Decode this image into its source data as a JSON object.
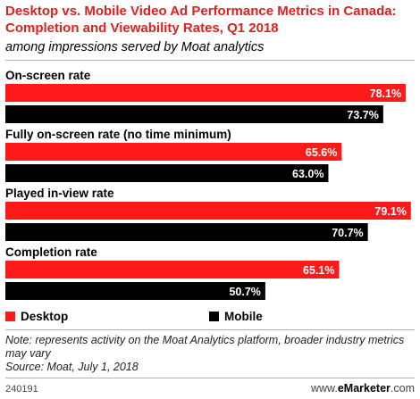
{
  "header": {
    "title": "Desktop vs. Mobile Video Ad Performance Metrics in Canada: Completion and Viewability Rates, Q1 2018",
    "subtitle": "among impressions served by Moat analytics"
  },
  "legend": {
    "desktop_label": "Desktop",
    "mobile_label": "Mobile"
  },
  "footer": {
    "note": "Note: represents activity on the Moat Analytics platform, broader industry metrics may vary",
    "source": "Source: Moat, July 1, 2018",
    "chart_id": "240191",
    "brand_prefix": "www.",
    "brand_name": "eMarketer",
    "brand_suffix": ".com"
  },
  "colors": {
    "desktop": "#ff1a1a",
    "mobile": "#000000",
    "title": "#e1201c",
    "label_on_red": "#ffffff",
    "label_on_black": "#ffffff"
  },
  "chart_data": {
    "type": "bar",
    "orientation": "horizontal",
    "categories": [
      "On-screen rate",
      "Fully on-screen rate (no time minimum)",
      "Played in-view rate",
      "Completion rate"
    ],
    "series": [
      {
        "name": "Desktop",
        "values": [
          78.1,
          65.6,
          79.1,
          65.1
        ],
        "labels": [
          "78.1%",
          "65.6%",
          "79.1%",
          "65.1%"
        ]
      },
      {
        "name": "Mobile",
        "values": [
          73.7,
          63.0,
          70.7,
          50.7
        ],
        "labels": [
          "73.7%",
          "63.0%",
          "70.7%",
          "50.7%"
        ]
      }
    ],
    "value_suffix": "%",
    "xlim": [
      0,
      80
    ],
    "grid": false,
    "legend_position": "bottom-left"
  }
}
